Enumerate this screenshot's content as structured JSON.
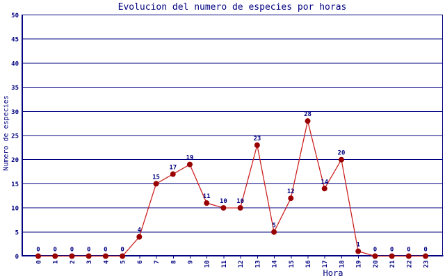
{
  "chart_data": {
    "type": "line",
    "title": "Evolucion del numero de especies por horas",
    "xlabel": "Hora",
    "ylabel": "Numero de especies",
    "categories": [
      "0",
      "1",
      "2",
      "3",
      "4",
      "5",
      "6",
      "7",
      "8",
      "9",
      "10",
      "11",
      "12",
      "13",
      "14",
      "15",
      "16",
      "17",
      "18",
      "19",
      "20",
      "21",
      "22",
      "23"
    ],
    "values": [
      0,
      0,
      0,
      0,
      0,
      0,
      4,
      15,
      17,
      19,
      11,
      10,
      10,
      23,
      5,
      12,
      28,
      14,
      20,
      1,
      0,
      0,
      0,
      0
    ],
    "yticks": [
      0,
      5,
      10,
      15,
      20,
      25,
      30,
      35,
      40,
      45,
      50
    ],
    "ylim": [
      0,
      50
    ],
    "grid": true,
    "legend": "none",
    "point_labels": true,
    "colors": {
      "axis": "#000080",
      "text": "#000080",
      "line": "#cc2222",
      "marker": "#990000",
      "background": "#ffffff"
    }
  }
}
